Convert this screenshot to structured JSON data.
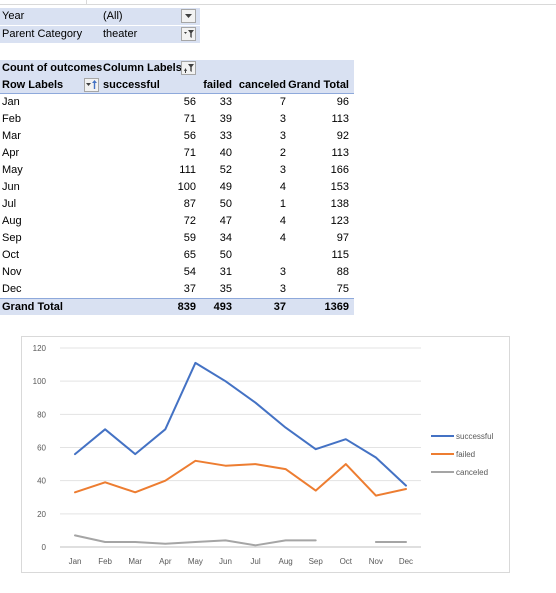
{
  "filters": [
    {
      "label": "Year",
      "value": "(All)"
    },
    {
      "label": "Parent Category",
      "value": "theater"
    }
  ],
  "pivot": {
    "count_label": "Count of outcomes",
    "column_labels": "Column Labels",
    "row_labels": "Row Labels",
    "columns": [
      "successful",
      "failed",
      "canceled",
      "Grand Total"
    ],
    "rows": [
      {
        "label": "Jan",
        "values": [
          "56",
          "33",
          "7",
          "96"
        ]
      },
      {
        "label": "Feb",
        "values": [
          "71",
          "39",
          "3",
          "113"
        ]
      },
      {
        "label": "Mar",
        "values": [
          "56",
          "33",
          "3",
          "92"
        ]
      },
      {
        "label": "Apr",
        "values": [
          "71",
          "40",
          "2",
          "113"
        ]
      },
      {
        "label": "May",
        "values": [
          "111",
          "52",
          "3",
          "166"
        ]
      },
      {
        "label": "Jun",
        "values": [
          "100",
          "49",
          "4",
          "153"
        ]
      },
      {
        "label": "Jul",
        "values": [
          "87",
          "50",
          "1",
          "138"
        ]
      },
      {
        "label": "Aug",
        "values": [
          "72",
          "47",
          "4",
          "123"
        ]
      },
      {
        "label": "Sep",
        "values": [
          "59",
          "34",
          "4",
          "97"
        ]
      },
      {
        "label": "Oct",
        "values": [
          "65",
          "50",
          "",
          "115"
        ]
      },
      {
        "label": "Nov",
        "values": [
          "54",
          "31",
          "3",
          "88"
        ]
      },
      {
        "label": "Dec",
        "values": [
          "37",
          "35",
          "3",
          "75"
        ]
      }
    ],
    "total": {
      "label": "Grand Total",
      "values": [
        "839",
        "493",
        "37",
        "1369"
      ]
    }
  },
  "chart_data": {
    "type": "line",
    "categories": [
      "Jan",
      "Feb",
      "Mar",
      "Apr",
      "May",
      "Jun",
      "Jul",
      "Aug",
      "Sep",
      "Oct",
      "Nov",
      "Dec"
    ],
    "series": [
      {
        "name": "successful",
        "color": "#4472c4",
        "values": [
          56,
          71,
          56,
          71,
          111,
          100,
          87,
          72,
          59,
          65,
          54,
          37
        ]
      },
      {
        "name": "failed",
        "color": "#ed7d31",
        "values": [
          33,
          39,
          33,
          40,
          52,
          49,
          50,
          47,
          34,
          50,
          31,
          35
        ]
      },
      {
        "name": "canceled",
        "color": "#a5a5a5",
        "values": [
          7,
          3,
          3,
          2,
          3,
          4,
          1,
          4,
          4,
          null,
          3,
          3
        ]
      }
    ],
    "ylim": [
      0,
      120
    ],
    "yticks": [
      0,
      20,
      40,
      60,
      80,
      100,
      120
    ],
    "grid": true,
    "legend": "right",
    "title": "",
    "xlabel": "",
    "ylabel": ""
  }
}
